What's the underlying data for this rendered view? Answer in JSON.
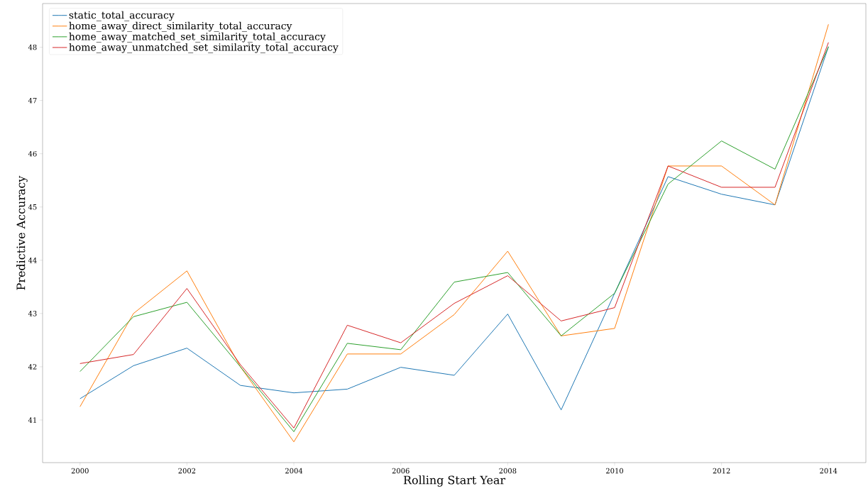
{
  "chart_data": {
    "type": "line",
    "xlabel": "Rolling Start Year",
    "ylabel": "Predictive Accuracy",
    "x": [
      2000,
      2001,
      2002,
      2003,
      2004,
      2005,
      2006,
      2007,
      2008,
      2009,
      2010,
      2011,
      2012,
      2013,
      2014
    ],
    "series": [
      {
        "name": "static_total_accuracy",
        "color": "#1f77b4",
        "values": [
          41.4,
          42.02,
          42.35,
          41.65,
          41.51,
          41.58,
          41.99,
          41.84,
          42.99,
          41.19,
          43.38,
          45.57,
          45.24,
          45.04,
          48.01
        ]
      },
      {
        "name": "home_away_direct_similarity_total_accuracy",
        "color": "#ff7f0e",
        "values": [
          41.25,
          43.0,
          43.8,
          42.0,
          40.59,
          42.24,
          42.24,
          42.98,
          44.17,
          42.58,
          42.72,
          45.77,
          45.77,
          45.04,
          48.43
        ]
      },
      {
        "name": "home_away_matched_set_similarity_total_accuracy",
        "color": "#2ca02c",
        "values": [
          41.91,
          42.94,
          43.21,
          42.0,
          40.78,
          42.44,
          42.32,
          43.59,
          43.77,
          42.58,
          43.38,
          45.43,
          46.24,
          45.71,
          48.01
        ]
      },
      {
        "name": "home_away_unmatched_set_similarity_total_accuracy",
        "color": "#d62728",
        "values": [
          42.06,
          42.23,
          43.47,
          42.04,
          40.85,
          42.78,
          42.45,
          43.19,
          43.71,
          42.86,
          43.11,
          45.77,
          45.37,
          45.37,
          48.09
        ]
      }
    ],
    "xlim": [
      1999.3,
      2014.7
    ],
    "ylim": [
      40.2,
      48.82
    ],
    "xticks": [
      2000,
      2002,
      2004,
      2006,
      2008,
      2010,
      2012,
      2014
    ],
    "yticks": [
      41,
      42,
      43,
      44,
      45,
      46,
      47,
      48
    ],
    "legend": "top left",
    "grid": false,
    "marker": "none",
    "line_style": "solid"
  }
}
